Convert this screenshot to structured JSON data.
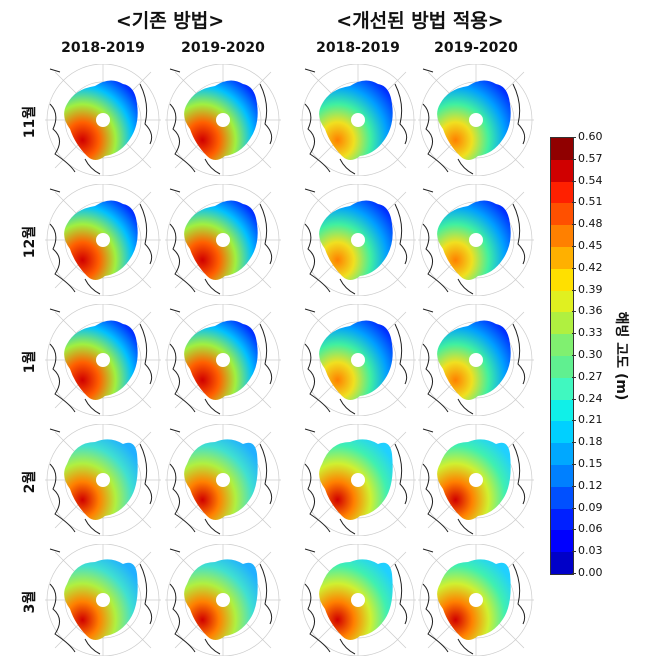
{
  "headers": {
    "left": "<기존 방법>",
    "right": "<개선된 방법 적용>"
  },
  "columns": [
    "2018-2019",
    "2019-2020",
    "2018-2019",
    "2019-2020"
  ],
  "rows": [
    "11월",
    "12월",
    "1월",
    "2월",
    "3월"
  ],
  "colorbar": {
    "label": "해빙 고도 (m)",
    "range": [
      0.0,
      0.6
    ],
    "ticks": [
      "0.00",
      "0.03",
      "0.06",
      "0.09",
      "0.12",
      "0.15",
      "0.18",
      "0.21",
      "0.24",
      "0.27",
      "0.30",
      "0.33",
      "0.36",
      "0.39",
      "0.42",
      "0.45",
      "0.48",
      "0.51",
      "0.54",
      "0.57",
      "0.60"
    ],
    "colormap": "jet",
    "colors": [
      "#00008f",
      "#0000c8",
      "#0000ff",
      "#0020ff",
      "#0050ff",
      "#0080ff",
      "#00a8ff",
      "#00d0ff",
      "#10f0e8",
      "#40f8c0",
      "#60f090",
      "#80f070",
      "#b0f040",
      "#e0f020",
      "#ffe000",
      "#ffb000",
      "#ff8000",
      "#ff5000",
      "#ff2000",
      "#d00000",
      "#900000"
    ]
  }
}
